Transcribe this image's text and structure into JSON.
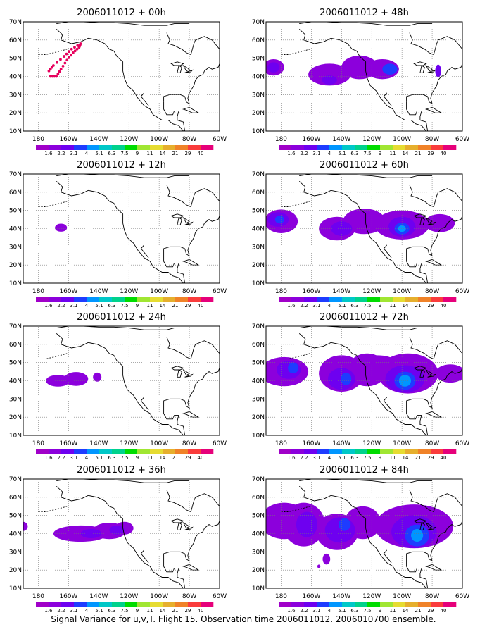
{
  "figure": {
    "caption": "Signal Variance for u,v,T. Flight 15. Observation time 2006011012. 2006010700 ensemble.",
    "lat_labels": [
      "70N",
      "60N",
      "50N",
      "40N",
      "30N",
      "20N",
      "10N"
    ],
    "lon_labels": [
      "180",
      "160W",
      "140W",
      "120W",
      "100W",
      "80W",
      "60W"
    ],
    "grid": "dotted",
    "domain": {
      "lon_min": -190,
      "lon_max": -60,
      "lat_min": 10,
      "lat_max": 70
    },
    "colorbar": {
      "labels": [
        "1.6",
        "2.2",
        "3.1",
        "4",
        "5.1",
        "6.3",
        "7.5",
        "9",
        "11",
        "14",
        "21",
        "29",
        "40"
      ],
      "colors": [
        "#a000c8",
        "#8c00dc",
        "#6e00f0",
        "#1e3cff",
        "#0096ff",
        "#00c8c8",
        "#00d28c",
        "#00dc00",
        "#a0e632",
        "#e6dc32",
        "#e6af2d",
        "#f08228",
        "#fa3c3c",
        "#e6007a"
      ]
    },
    "panels": [
      {
        "id": "p00",
        "title": "2006011012 + 00h",
        "blobs": [],
        "flight_track": [
          [
            -172,
            40
          ],
          [
            -168,
            40
          ],
          [
            -165,
            44
          ],
          [
            -161,
            49
          ],
          [
            -157,
            53
          ],
          [
            -153,
            56
          ],
          [
            -152,
            58
          ],
          [
            -158,
            55
          ],
          [
            -163,
            51
          ],
          [
            -170,
            46
          ],
          [
            -173,
            43
          ]
        ]
      },
      {
        "id": "p12",
        "title": "2006011012 + 12h",
        "blobs": [
          {
            "lon": -165,
            "lat": 40.5,
            "rx": 4,
            "ry": 2.2,
            "level": 1
          }
        ]
      },
      {
        "id": "p24",
        "title": "2006011012 + 24h",
        "blobs": [
          {
            "lon": -167,
            "lat": 40,
            "rx": 8,
            "ry": 3.2,
            "level": 1
          },
          {
            "lon": -155,
            "lat": 41,
            "rx": 8,
            "ry": 3.8,
            "level": 1
          },
          {
            "lon": -141,
            "lat": 42,
            "rx": 2.8,
            "ry": 2.5,
            "level": 1
          }
        ]
      },
      {
        "id": "p36",
        "title": "2006011012 + 36h",
        "blobs": [
          {
            "lon": -190,
            "lat": 44,
            "rx": 3,
            "ry": 2.5,
            "level": 1
          },
          {
            "lon": -152,
            "lat": 40,
            "rx": 18,
            "ry": 4.5,
            "level": 1
          },
          {
            "lon": -133,
            "lat": 41.5,
            "rx": 11,
            "ry": 4.5,
            "level": 1
          },
          {
            "lon": -123,
            "lat": 43,
            "rx": 6,
            "ry": 3.5,
            "level": 1
          },
          {
            "lon": -145,
            "lat": 40,
            "rx": 7,
            "ry": 2.5,
            "level": 2
          },
          {
            "lon": -128,
            "lat": 42,
            "rx": 5,
            "ry": 2.5,
            "level": 2
          }
        ]
      },
      {
        "id": "p48",
        "title": "2006011012 + 48h",
        "blobs": [
          {
            "lon": -185,
            "lat": 45,
            "rx": 7,
            "ry": 4.5,
            "level": 1
          },
          {
            "lon": -185,
            "lat": 45,
            "rx": 4,
            "ry": 2.8,
            "level": 2
          },
          {
            "lon": -148,
            "lat": 41,
            "rx": 14,
            "ry": 6,
            "level": 1
          },
          {
            "lon": -128,
            "lat": 45,
            "rx": 12,
            "ry": 6.5,
            "level": 1
          },
          {
            "lon": -113,
            "lat": 44,
            "rx": 11,
            "ry": 5.5,
            "level": 1
          },
          {
            "lon": -108,
            "lat": 44,
            "rx": 5,
            "ry": 3,
            "level": 3
          },
          {
            "lon": -148,
            "lat": 38,
            "rx": 5,
            "ry": 2.5,
            "level": 2
          },
          {
            "lon": -76,
            "lat": 43,
            "rx": 2,
            "ry": 3.5,
            "level": 2
          }
        ]
      },
      {
        "id": "p60",
        "title": "2006011012 + 60h",
        "blobs": [
          {
            "lon": -180,
            "lat": 44,
            "rx": 11,
            "ry": 6.5,
            "level": 1
          },
          {
            "lon": -182,
            "lat": 45,
            "rx": 7,
            "ry": 4,
            "level": 2
          },
          {
            "lon": -181,
            "lat": 45,
            "rx": 3,
            "ry": 2.2,
            "level": 3
          },
          {
            "lon": -143,
            "lat": 40,
            "rx": 12,
            "ry": 6.5,
            "level": 1
          },
          {
            "lon": -140,
            "lat": 40,
            "rx": 7,
            "ry": 4,
            "level": 2
          },
          {
            "lon": -125,
            "lat": 44,
            "rx": 14,
            "ry": 7,
            "level": 1
          },
          {
            "lon": -100,
            "lat": 42,
            "rx": 18,
            "ry": 8,
            "level": 1
          },
          {
            "lon": -100,
            "lat": 41,
            "rx": 9,
            "ry": 5.5,
            "level": 2
          },
          {
            "lon": -100,
            "lat": 40,
            "rx": 5,
            "ry": 3.2,
            "level": 3
          },
          {
            "lon": -100,
            "lat": 40,
            "rx": 2.6,
            "ry": 1.8,
            "level": 4
          },
          {
            "lon": -75,
            "lat": 43,
            "rx": 10,
            "ry": 5,
            "level": 1
          }
        ]
      },
      {
        "id": "p72",
        "title": "2006011012 + 72h",
        "blobs": [
          {
            "lon": -178,
            "lat": 45,
            "rx": 16,
            "ry": 8,
            "level": 1
          },
          {
            "lon": -175,
            "lat": 46,
            "rx": 8,
            "ry": 5,
            "level": 2
          },
          {
            "lon": -172,
            "lat": 47,
            "rx": 3.5,
            "ry": 3,
            "level": 3
          },
          {
            "lon": -140,
            "lat": 44,
            "rx": 15,
            "ry": 10,
            "level": 1
          },
          {
            "lon": -140,
            "lat": 41,
            "rx": 9,
            "ry": 6,
            "level": 2
          },
          {
            "lon": -137,
            "lat": 41,
            "rx": 3.5,
            "ry": 3.5,
            "level": 3
          },
          {
            "lon": -123,
            "lat": 46,
            "rx": 13,
            "ry": 9,
            "level": 1
          },
          {
            "lon": -96,
            "lat": 44,
            "rx": 20,
            "ry": 11,
            "level": 1
          },
          {
            "lon": -98,
            "lat": 41,
            "rx": 13,
            "ry": 7.5,
            "level": 2
          },
          {
            "lon": -98,
            "lat": 40,
            "rx": 7,
            "ry": 5,
            "level": 3
          },
          {
            "lon": -98,
            "lat": 40,
            "rx": 4,
            "ry": 3.2,
            "level": 4
          },
          {
            "lon": -68,
            "lat": 44,
            "rx": 10,
            "ry": 5,
            "level": 1
          },
          {
            "lon": -117,
            "lat": 51,
            "rx": 12,
            "ry": 3,
            "level": 1
          }
        ]
      },
      {
        "id": "p84",
        "title": "2006011012 + 84h",
        "blobs": [
          {
            "lon": -178,
            "lat": 47,
            "rx": 16,
            "ry": 10,
            "level": 1
          },
          {
            "lon": -165,
            "lat": 45,
            "rx": 14,
            "ry": 12,
            "level": 1
          },
          {
            "lon": -163,
            "lat": 45,
            "rx": 7,
            "ry": 7,
            "level": 2
          },
          {
            "lon": -143,
            "lat": 41,
            "rx": 14,
            "ry": 10,
            "level": 1
          },
          {
            "lon": -141,
            "lat": 42,
            "rx": 10,
            "ry": 7,
            "level": 2
          },
          {
            "lon": -138,
            "lat": 45,
            "rx": 4,
            "ry": 3.5,
            "level": 3
          },
          {
            "lon": -126,
            "lat": 46,
            "rx": 12,
            "ry": 9,
            "level": 1
          },
          {
            "lon": -92,
            "lat": 44,
            "rx": 26,
            "ry": 12,
            "level": 1
          },
          {
            "lon": -92,
            "lat": 41,
            "rx": 15,
            "ry": 9,
            "level": 2
          },
          {
            "lon": -90,
            "lat": 39,
            "rx": 8,
            "ry": 6,
            "level": 3
          },
          {
            "lon": -90,
            "lat": 39,
            "rx": 4,
            "ry": 3.5,
            "level": 4
          },
          {
            "lon": -150,
            "lat": 26,
            "rx": 2.5,
            "ry": 3,
            "level": 1
          },
          {
            "lon": -155,
            "lat": 22,
            "rx": 1,
            "ry": 1,
            "level": 1
          }
        ]
      }
    ]
  }
}
